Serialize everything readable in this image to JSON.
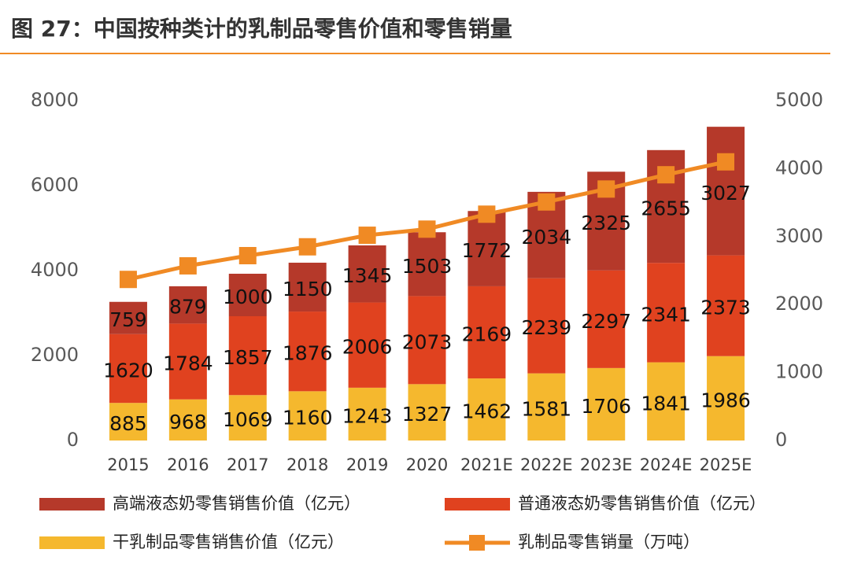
{
  "chart_data": {
    "type": "bar",
    "title": "图 27：中国按种类计的乳制品零售价值和零售销量",
    "categories": [
      "2015",
      "2016",
      "2017",
      "2018",
      "2019",
      "2020",
      "2021E",
      "2022E",
      "2023E",
      "2024E",
      "2025E"
    ],
    "series": [
      {
        "name": "高端液态奶零售销售价值（亿元）",
        "color": "#b5392a",
        "values": [
          759,
          879,
          1000,
          1150,
          1345,
          1503,
          1772,
          2034,
          2325,
          2655,
          3027
        ]
      },
      {
        "name": "普通液态奶零售销售价值（亿元）",
        "color": "#e0421f",
        "values": [
          1620,
          1784,
          1857,
          1876,
          2006,
          2073,
          2169,
          2239,
          2297,
          2341,
          2373
        ]
      },
      {
        "name": "干乳制品零售销售价值（亿元）",
        "color": "#f5b82e",
        "values": [
          885,
          968,
          1069,
          1160,
          1243,
          1327,
          1462,
          1581,
          1706,
          1841,
          1986
        ]
      },
      {
        "name": "乳制品零售销量（万吨）",
        "color": "#f08a24",
        "type": "line",
        "axis": "y2",
        "values": [
          2370,
          2570,
          2720,
          2850,
          3020,
          3110,
          3330,
          3510,
          3700,
          3910,
          4100
        ]
      }
    ],
    "ylim": [
      0,
      8000
    ],
    "yticks": [
      0,
      2000,
      4000,
      6000,
      8000
    ],
    "y2lim": [
      0,
      5000
    ],
    "y2ticks": [
      0,
      1000,
      2000,
      3000,
      4000,
      5000
    ]
  }
}
